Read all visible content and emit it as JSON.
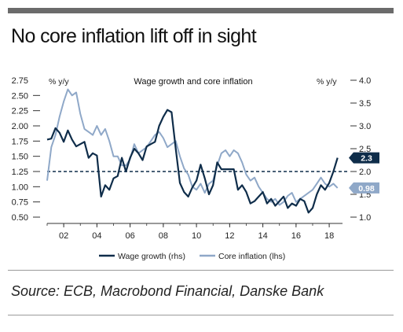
{
  "header": {
    "title": "No core inflation lift off in sight"
  },
  "footer": {
    "source": "Source: ECB, Macrobond Financial, Danske Bank"
  },
  "chart_data": {
    "type": "line",
    "title": "Wage growth and core inflation",
    "left_axis": {
      "unit": "% y/y",
      "ylim": [
        0.5,
        2.75
      ],
      "ticks": [
        "0.50",
        "0.75",
        "1.00",
        "1.25",
        "1.50",
        "1.75",
        "2.00",
        "2.25",
        "2.50",
        "2.75"
      ]
    },
    "right_axis": {
      "unit": "% y/y",
      "ylim": [
        1.0,
        4.0
      ],
      "ticks": [
        "1.0",
        "1.5",
        "2.0",
        "2.5",
        "3.0",
        "3.5",
        "4.0"
      ]
    },
    "x_ticks": [
      "02",
      "04",
      "06",
      "08",
      "10",
      "12",
      "14",
      "16",
      "18"
    ],
    "xlim": [
      2001.0,
      2018.8
    ],
    "reference_line": {
      "axis": "right",
      "value": 2.0,
      "style": "dashed"
    },
    "series": [
      {
        "name": "Wage growth (rhs)",
        "axis": "right",
        "color": "#0f2d4a",
        "end_label": "2.3",
        "x": [
          2001.0,
          2001.25,
          2001.5,
          2001.75,
          2002.0,
          2002.25,
          2002.5,
          2002.75,
          2003.0,
          2003.25,
          2003.5,
          2003.75,
          2004.0,
          2004.25,
          2004.5,
          2004.75,
          2005.0,
          2005.25,
          2005.5,
          2005.75,
          2006.0,
          2006.25,
          2006.5,
          2006.75,
          2007.0,
          2007.25,
          2007.5,
          2007.75,
          2008.0,
          2008.25,
          2008.5,
          2008.75,
          2009.0,
          2009.25,
          2009.5,
          2009.75,
          2010.0,
          2010.25,
          2010.5,
          2010.75,
          2011.0,
          2011.25,
          2011.5,
          2011.75,
          2012.0,
          2012.25,
          2012.5,
          2012.75,
          2013.0,
          2013.25,
          2013.5,
          2013.75,
          2014.0,
          2014.25,
          2014.5,
          2014.75,
          2015.0,
          2015.25,
          2015.5,
          2015.75,
          2016.0,
          2016.25,
          2016.5,
          2016.75,
          2017.0,
          2017.25,
          2017.5,
          2017.75,
          2018.0,
          2018.25,
          2018.5
        ],
        "values": [
          2.7,
          2.72,
          2.95,
          2.85,
          2.65,
          2.9,
          2.7,
          2.55,
          2.6,
          2.65,
          2.3,
          2.4,
          2.35,
          1.45,
          1.7,
          1.6,
          1.85,
          1.9,
          2.3,
          2.0,
          2.3,
          2.5,
          2.4,
          2.25,
          2.55,
          2.6,
          2.65,
          3.0,
          3.2,
          3.35,
          3.3,
          2.5,
          1.75,
          1.55,
          1.45,
          1.65,
          1.8,
          2.15,
          1.85,
          1.5,
          1.7,
          2.2,
          2.05,
          2.05,
          2.05,
          2.05,
          1.6,
          1.7,
          1.55,
          1.3,
          1.35,
          1.45,
          1.55,
          1.3,
          1.4,
          1.25,
          1.35,
          1.45,
          1.2,
          1.3,
          1.25,
          1.4,
          1.35,
          1.1,
          1.2,
          1.5,
          1.7,
          1.6,
          1.75,
          2.0,
          2.3
        ]
      },
      {
        "name": "Core inflation (lhs)",
        "axis": "left",
        "color": "#8fa8c8",
        "end_label": "0.98",
        "x": [
          2001.0,
          2001.25,
          2001.5,
          2001.75,
          2002.0,
          2002.25,
          2002.5,
          2002.75,
          2003.0,
          2003.25,
          2003.5,
          2003.75,
          2004.0,
          2004.25,
          2004.5,
          2004.75,
          2005.0,
          2005.25,
          2005.5,
          2005.75,
          2006.0,
          2006.25,
          2006.5,
          2006.75,
          2007.0,
          2007.25,
          2007.5,
          2007.75,
          2008.0,
          2008.25,
          2008.5,
          2008.75,
          2009.0,
          2009.25,
          2009.5,
          2009.75,
          2010.0,
          2010.25,
          2010.5,
          2010.75,
          2011.0,
          2011.25,
          2011.5,
          2011.75,
          2012.0,
          2012.25,
          2012.5,
          2012.75,
          2013.0,
          2013.25,
          2013.5,
          2013.75,
          2014.0,
          2014.25,
          2014.5,
          2014.75,
          2015.0,
          2015.25,
          2015.5,
          2015.75,
          2016.0,
          2016.25,
          2016.5,
          2016.75,
          2017.0,
          2017.25,
          2017.5,
          2017.75,
          2018.0,
          2018.25,
          2018.5
        ],
        "values": [
          1.1,
          1.65,
          1.85,
          2.15,
          2.4,
          2.6,
          2.5,
          2.55,
          2.2,
          1.95,
          1.9,
          1.85,
          2.0,
          1.85,
          1.95,
          1.75,
          1.5,
          1.5,
          1.35,
          1.35,
          1.45,
          1.7,
          1.55,
          1.6,
          1.65,
          1.75,
          1.85,
          1.9,
          1.8,
          1.65,
          1.7,
          1.75,
          1.5,
          1.3,
          1.2,
          1.0,
          0.95,
          1.05,
          0.9,
          1.05,
          1.1,
          1.35,
          1.55,
          1.6,
          1.5,
          1.6,
          1.55,
          1.4,
          1.2,
          1.1,
          1.15,
          1.0,
          0.9,
          0.8,
          0.75,
          0.8,
          0.7,
          0.75,
          0.85,
          0.9,
          0.75,
          0.8,
          0.85,
          0.9,
          0.95,
          1.05,
          1.15,
          1.05,
          1.0,
          1.05,
          0.98
        ]
      }
    ],
    "legend": {
      "placement": "bottom-center",
      "items": [
        "Wage growth (rhs)",
        "Core inflation (lhs)"
      ]
    }
  }
}
